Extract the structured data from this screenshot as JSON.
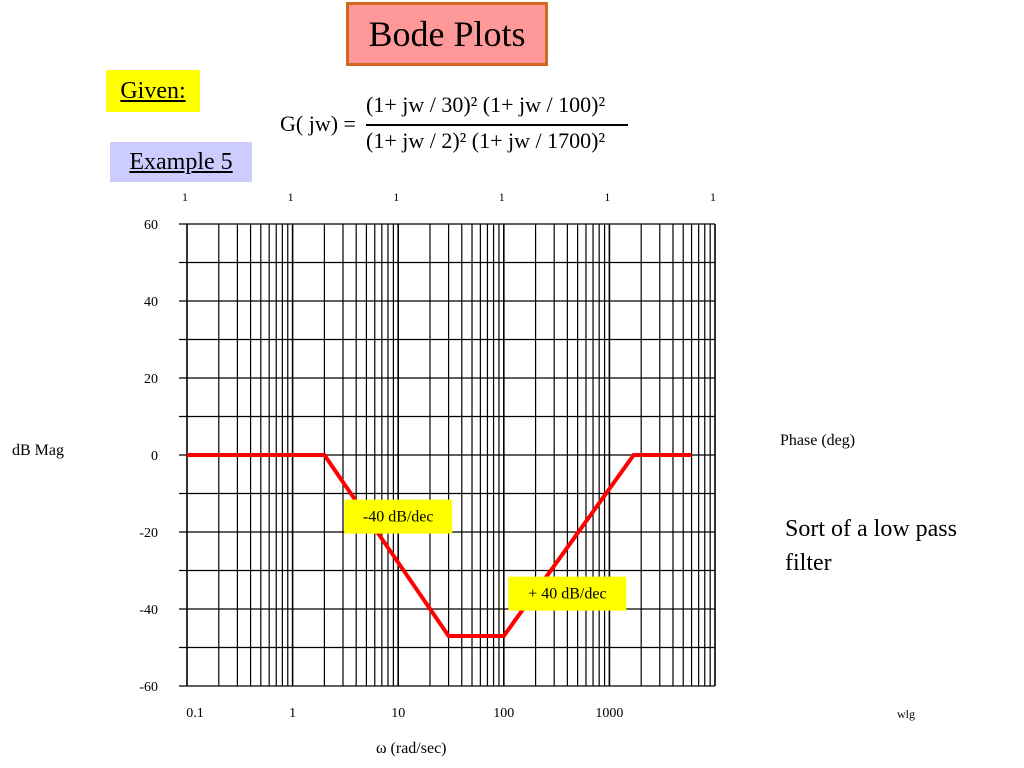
{
  "slide": {
    "title": "Bode Plots",
    "given_label": "Given:",
    "example_label": "Example 5",
    "formula": {
      "lhs": "G( jw) =",
      "numerator": "(1+ jw / 30)² (1+ jw / 100)²",
      "denominator": "(1+ jw / 2)² (1+ jw / 1700)²"
    },
    "phase_label": "Phase (deg)",
    "note": "Sort of a low pass filter",
    "footer": "wlg"
  },
  "colors": {
    "title_bg": "#ff9999",
    "title_border": "#d2691e",
    "given_bg": "#ffff00",
    "example_bg": "#ccccff",
    "curve": "#ff0000",
    "annotation_bg": "#ffff00"
  },
  "chart_data": {
    "type": "line",
    "xscale": "log",
    "xlim": [
      0.1,
      10000
    ],
    "ylim": [
      -60,
      60
    ],
    "xlabel": "ω (rad/sec)",
    "ylabel": "dB Mag",
    "x_ticks": [
      "0.1",
      "1",
      "10",
      "100",
      "1000"
    ],
    "y_ticks": [
      "60",
      "40",
      "20",
      "0",
      "-20",
      "-40",
      "-60"
    ],
    "top_ticks": [
      "1",
      "1",
      "1",
      "1",
      "1",
      "1"
    ],
    "grid": true,
    "series": [
      {
        "x": [
          0.1,
          2,
          30,
          100,
          1700,
          6000
        ],
        "y": [
          0,
          0,
          -47,
          -47,
          0,
          0
        ]
      }
    ],
    "annotations": [
      {
        "text": "-40 dB/dec",
        "x": 10,
        "y": -16
      },
      {
        "text": "+ 40 dB/dec",
        "x": 400,
        "y": -36
      }
    ]
  }
}
